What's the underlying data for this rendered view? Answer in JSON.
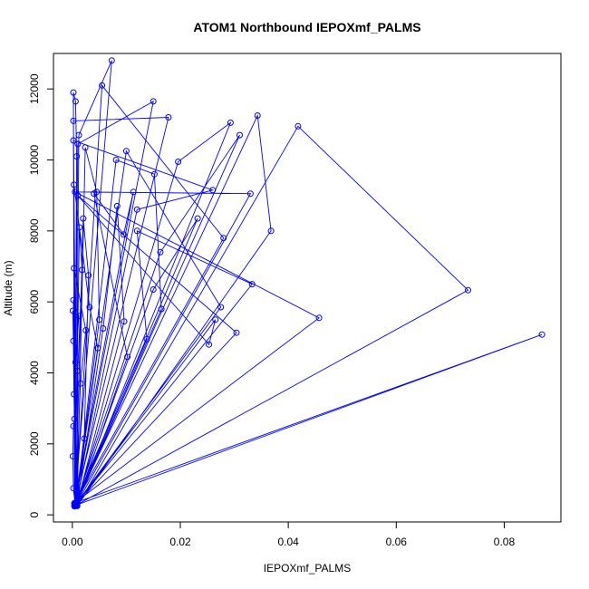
{
  "chart_data": {
    "type": "line",
    "title": "ATOM1 Northbound IEPOXmf_PALMS",
    "xlabel": "IEPOXmf_PALMS",
    "ylabel": "Altitude (m)",
    "xlim": [
      -0.0035,
      0.0905
    ],
    "ylim": [
      -200,
      13000
    ],
    "xticks": [
      0.0,
      0.02,
      0.04,
      0.06,
      0.08
    ],
    "xtick_labels": [
      "0.00",
      "0.02",
      "0.04",
      "0.06",
      "0.08"
    ],
    "yticks": [
      0,
      2000,
      4000,
      6000,
      8000,
      10000,
      12000
    ],
    "ytick_labels": [
      "0",
      "2000",
      "4000",
      "6000",
      "8000",
      "10000",
      "12000"
    ],
    "grid": false,
    "series": [
      {
        "color": "#0000ff",
        "marker": "open-circle",
        "points": [
          [
            0.0004,
            300
          ],
          [
            0.0002,
            11900
          ],
          [
            0.0006,
            11650
          ],
          [
            0.0008,
            10100
          ],
          [
            0.0004,
            260
          ],
          [
            0.0073,
            12800
          ],
          [
            0.0012,
            10700
          ],
          [
            0.0006,
            280
          ],
          [
            0.0055,
            12100
          ],
          [
            0.028,
            7800
          ],
          [
            0.0005,
            320
          ],
          [
            0.015,
            11650
          ],
          [
            0.001,
            10450
          ],
          [
            0.0004,
            240
          ],
          [
            0.0178,
            11200
          ],
          [
            0.0002,
            11100
          ],
          [
            0.0008,
            300
          ],
          [
            0.0293,
            11050
          ],
          [
            0.0196,
            9950
          ],
          [
            0.0007,
            280
          ],
          [
            0.031,
            10700
          ],
          [
            0.0163,
            7400
          ],
          [
            0.0006,
            300
          ],
          [
            0.0343,
            11250
          ],
          [
            0.0368,
            8000
          ],
          [
            0.0009,
            250
          ],
          [
            0.0418,
            10950
          ],
          [
            0.0733,
            6330
          ],
          [
            0.0008,
            280
          ],
          [
            0.087,
            5080
          ],
          [
            0.0004,
            330
          ],
          [
            0.0457,
            5550
          ],
          [
            0.0005,
            9100
          ],
          [
            0.033,
            9050
          ],
          [
            0.0006,
            260
          ],
          [
            0.0002,
            10550
          ],
          [
            0.026,
            9150
          ],
          [
            0.012,
            8600
          ],
          [
            0.0007,
            300
          ],
          [
            0.0081,
            10000
          ],
          [
            0.0152,
            9600
          ],
          [
            0.0165,
            5800
          ],
          [
            0.0006,
            290
          ],
          [
            0.01,
            10250
          ],
          [
            0.0275,
            5850
          ],
          [
            0.0005,
            270
          ],
          [
            0.0232,
            8350
          ],
          [
            0.015,
            6350
          ],
          [
            0.0007,
            300
          ],
          [
            0.0265,
            5500
          ],
          [
            0.0253,
            4800
          ],
          [
            0.001,
            9000
          ],
          [
            0.0304,
            5130
          ],
          [
            0.0006,
            280
          ],
          [
            0.0333,
            6500
          ],
          [
            0.012,
            8000
          ],
          [
            0.0138,
            4950
          ],
          [
            0.0004,
            320
          ],
          [
            0.0113,
            9100
          ],
          [
            0.0095,
            7900
          ],
          [
            0.004,
            9050
          ],
          [
            0.0102,
            4450
          ],
          [
            0.0008,
            260
          ],
          [
            0.0096,
            5450
          ],
          [
            0.0083,
            8700
          ],
          [
            0.0057,
            5250
          ],
          [
            0.0009,
            300
          ],
          [
            0.0024,
            10350
          ],
          [
            0.0045,
            9100
          ],
          [
            0.005,
            5500
          ],
          [
            0.0007,
            270
          ],
          [
            0.0003,
            9300
          ],
          [
            0.0032,
            5850
          ],
          [
            0.0047,
            4700
          ],
          [
            0.0006,
            310
          ],
          [
            0.002,
            8350
          ],
          [
            0.003,
            6750
          ],
          [
            0.0022,
            2150
          ],
          [
            0.0005,
            290
          ],
          [
            0.0013,
            8100
          ],
          [
            0.0018,
            6900
          ],
          [
            0.001,
            4050
          ],
          [
            0.0008,
            300
          ],
          [
            0.0003,
            6950
          ],
          [
            0.0025,
            5200
          ],
          [
            0.0015,
            3700
          ],
          [
            0.0006,
            280
          ],
          [
            0.0002,
            6050
          ],
          [
            0.0012,
            5600
          ],
          [
            0.0006,
            4300
          ],
          [
            0.0007,
            260
          ],
          [
            0.0001,
            5750
          ],
          [
            0.0002,
            4900
          ],
          [
            0.0003,
            3400
          ],
          [
            0.0004,
            2700
          ],
          [
            0.0002,
            2500
          ],
          [
            0.0001,
            1650
          ],
          [
            0.0002,
            750
          ],
          [
            0.0005,
            310
          ]
        ]
      }
    ]
  }
}
